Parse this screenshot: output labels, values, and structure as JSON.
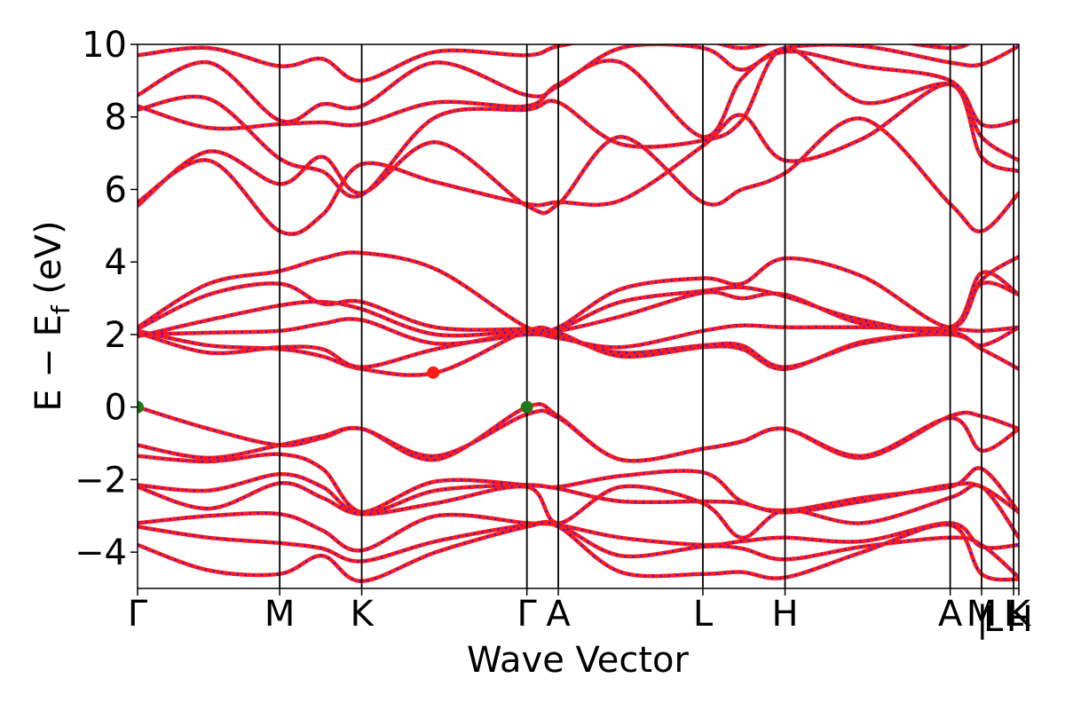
{
  "chart_data": {
    "type": "line",
    "xlabel": "Wave Vector",
    "ylabel_main": "E − E",
    "ylabel_sub": "f",
    "ylabel_unit": " (eV)",
    "ylim": [
      -5,
      10
    ],
    "yticks": [
      10,
      8,
      6,
      4,
      2,
      0,
      -2,
      -4
    ],
    "ytick_labels": [
      "10",
      "8",
      "6",
      "4",
      "2",
      "0",
      "−2",
      "−4"
    ],
    "kpoint_positions": [
      0,
      1.0,
      1.577,
      2.739,
      2.96,
      3.977,
      4.555,
      5.717,
      5.938,
      6.163,
      6.2
    ],
    "kpoint_labels": [
      "Γ",
      "M",
      "K",
      "Γ",
      "A",
      "L",
      "H",
      "A",
      "M",
      "L",
      "K"
    ],
    "extra_label_text": [
      "|",
      "L",
      "H"
    ],
    "extra_label_positions": [
      5.943,
      6.02,
      6.205
    ],
    "line_colors": {
      "primary": "#ff1a1a",
      "overlay": "#1f1fff"
    },
    "markers": [
      {
        "k": 0.0,
        "E": 0.0,
        "color": "#1b7a1b",
        "label": "VBM"
      },
      {
        "k": 2.739,
        "E": 0.0,
        "color": "#1b7a1b",
        "label": "VBM"
      },
      {
        "k": 2.08,
        "E": 0.95,
        "color": "#ff1a1a",
        "label": "CBM"
      }
    ],
    "series": [
      {
        "k": [
          0,
          0.5,
          1.0,
          1.3,
          1.577,
          2.1,
          2.739,
          2.96,
          3.4,
          3.977,
          4.25,
          4.555,
          5.1,
          5.717,
          5.938,
          6.2
        ],
        "E": [
          0.0,
          -0.6,
          -1.05,
          -0.85,
          -0.6,
          -1.45,
          0.0,
          -0.25,
          -1.45,
          -1.15,
          -0.95,
          -0.6,
          -1.4,
          -0.25,
          -0.25,
          -0.6
        ]
      },
      {
        "k": [
          0,
          0.5,
          1.0,
          1.3,
          1.577,
          2.1,
          2.739,
          2.96,
          3.4,
          3.977,
          4.25,
          4.555,
          5.1,
          5.717,
          5.938,
          6.2
        ],
        "E": [
          -1.05,
          -1.4,
          -1.05,
          -0.8,
          -0.6,
          -1.35,
          -0.2,
          -0.3,
          -1.45,
          -1.15,
          -0.95,
          -0.6,
          -1.35,
          -0.3,
          -1.2,
          -0.6
        ]
      },
      {
        "k": [
          0,
          0.5,
          1.0,
          1.3,
          1.577,
          2.1,
          2.739,
          2.96,
          3.4,
          3.977,
          4.25,
          4.555,
          5.1,
          5.717,
          5.938,
          6.2
        ],
        "E": [
          -1.35,
          -1.5,
          -1.3,
          -1.7,
          -2.9,
          -2.3,
          -2.15,
          -2.2,
          -1.9,
          -1.8,
          -2.6,
          -2.85,
          -2.5,
          -2.2,
          -1.7,
          -2.9
        ]
      },
      {
        "k": [
          0,
          0.5,
          1.0,
          1.3,
          1.577,
          2.1,
          2.739,
          2.96,
          3.4,
          3.977,
          4.25,
          4.555,
          5.1,
          5.717,
          5.938,
          6.2
        ],
        "E": [
          -2.15,
          -2.3,
          -1.85,
          -2.2,
          -2.9,
          -2.05,
          -2.15,
          -2.25,
          -2.6,
          -2.6,
          -2.65,
          -2.9,
          -2.6,
          -2.15,
          -2.2,
          -2.9
        ]
      },
      {
        "k": [
          0,
          0.5,
          1.0,
          1.3,
          1.577,
          2.1,
          2.739,
          2.96,
          3.4,
          3.977,
          4.25,
          4.555,
          5.1,
          5.717,
          5.938,
          6.2
        ],
        "E": [
          -2.2,
          -2.8,
          -2.1,
          -2.5,
          -2.95,
          -2.65,
          -2.2,
          -3.2,
          -2.2,
          -2.65,
          -3.6,
          -2.85,
          -3.2,
          -2.5,
          -2.2,
          -3.6
        ]
      },
      {
        "k": [
          0,
          0.5,
          1.0,
          1.3,
          1.577,
          2.1,
          2.739,
          2.96,
          3.4,
          3.977,
          4.25,
          4.555,
          5.1,
          5.717,
          5.938,
          6.2
        ],
        "E": [
          -3.2,
          -3.0,
          -2.95,
          -3.4,
          -3.95,
          -3.0,
          -3.2,
          -3.25,
          -3.6,
          -3.8,
          -3.7,
          -3.6,
          -3.7,
          -3.2,
          -3.85,
          -3.8
        ]
      },
      {
        "k": [
          0,
          0.5,
          1.0,
          1.3,
          1.577,
          2.1,
          2.739,
          2.96,
          3.4,
          3.977,
          4.25,
          4.555,
          5.1,
          5.717,
          5.938,
          6.2
        ],
        "E": [
          -3.3,
          -3.6,
          -3.75,
          -3.9,
          -4.25,
          -3.7,
          -3.25,
          -3.25,
          -4.1,
          -3.85,
          -3.9,
          -4.2,
          -3.85,
          -3.6,
          -3.8,
          -4.7
        ]
      },
      {
        "k": [
          0,
          0.5,
          1.0,
          1.3,
          1.577,
          2.1,
          2.739,
          2.96,
          3.4,
          3.977,
          4.25,
          4.555,
          5.1,
          5.717,
          5.938,
          6.2
        ],
        "E": [
          -3.8,
          -4.5,
          -4.6,
          -4.1,
          -4.8,
          -4.0,
          -3.3,
          -3.3,
          -4.55,
          -4.6,
          -4.55,
          -4.7,
          -4.0,
          -3.25,
          -4.6,
          -4.75
        ]
      },
      {
        "k": [
          0,
          0.5,
          1.0,
          1.3,
          1.577,
          2.1,
          2.739,
          2.96,
          3.4,
          3.977,
          4.25,
          4.555,
          5.1,
          5.717,
          5.938,
          6.2
        ],
        "E": [
          2.1,
          1.7,
          1.6,
          1.4,
          1.05,
          0.95,
          2.1,
          2.05,
          1.4,
          1.65,
          1.6,
          1.05,
          1.8,
          2.0,
          1.6,
          1.05
        ]
      },
      {
        "k": [
          0,
          0.5,
          1.0,
          1.3,
          1.577,
          2.1,
          2.739,
          2.96,
          3.4,
          3.977,
          4.25,
          4.555,
          5.1,
          5.717,
          5.938,
          6.2
        ],
        "E": [
          2.05,
          1.5,
          1.65,
          1.6,
          1.1,
          1.6,
          2.05,
          1.95,
          1.5,
          1.7,
          1.7,
          1.1,
          1.75,
          2.05,
          1.7,
          2.2
        ]
      },
      {
        "k": [
          0,
          0.5,
          1.0,
          1.3,
          1.577,
          2.1,
          2.739,
          2.96,
          3.4,
          3.977,
          4.25,
          4.555,
          5.1,
          5.717,
          5.938,
          6.2
        ],
        "E": [
          2.0,
          2.05,
          2.1,
          2.3,
          2.4,
          1.75,
          2.0,
          1.9,
          1.65,
          2.1,
          2.25,
          2.2,
          2.2,
          2.15,
          2.1,
          2.2
        ]
      },
      {
        "k": [
          0,
          0.5,
          1.0,
          1.3,
          1.577,
          2.1,
          2.739,
          2.96,
          3.4,
          3.977,
          4.25,
          4.555,
          5.1,
          5.717,
          5.938,
          6.2
        ],
        "E": [
          1.95,
          2.4,
          2.8,
          2.9,
          2.7,
          2.0,
          2.1,
          2.1,
          2.5,
          3.15,
          3.0,
          3.1,
          2.3,
          2.2,
          3.4,
          3.1
        ]
      },
      {
        "k": [
          0,
          0.5,
          1.0,
          1.3,
          1.577,
          2.1,
          2.739,
          2.96,
          3.4,
          3.977,
          4.25,
          4.555,
          5.1,
          5.717,
          5.938,
          6.2
        ],
        "E": [
          2.15,
          3.1,
          3.4,
          2.85,
          2.9,
          2.2,
          2.15,
          2.15,
          2.9,
          3.2,
          3.3,
          3.05,
          2.4,
          2.15,
          3.7,
          3.1
        ]
      },
      {
        "k": [
          0,
          0.5,
          1.0,
          1.3,
          1.577,
          2.1,
          2.739,
          2.96,
          3.4,
          3.977,
          4.25,
          4.555,
          5.1,
          5.717,
          5.938,
          6.2
        ],
        "E": [
          2.2,
          3.4,
          3.75,
          4.1,
          4.25,
          3.8,
          2.2,
          2.2,
          3.25,
          3.55,
          3.4,
          4.1,
          3.6,
          2.2,
          3.5,
          4.15
        ]
      },
      {
        "k": [
          0,
          0.5,
          1.0,
          1.3,
          1.577,
          2.1,
          2.739,
          2.96,
          3.4,
          3.977,
          4.25,
          4.555,
          5.1,
          5.717,
          5.938,
          6.2
        ],
        "E": [
          5.55,
          7.05,
          6.15,
          6.9,
          5.9,
          7.3,
          5.55,
          5.6,
          7.45,
          5.65,
          6.0,
          6.45,
          7.95,
          5.6,
          4.85,
          5.9
        ]
      },
      {
        "k": [
          0,
          0.5,
          1.0,
          1.3,
          1.577,
          2.1,
          2.739,
          2.96,
          3.4,
          3.977,
          4.25,
          4.555,
          5.1,
          5.717,
          5.938,
          6.2
        ],
        "E": [
          5.65,
          6.8,
          4.85,
          5.3,
          6.7,
          6.2,
          5.6,
          5.65,
          5.7,
          7.2,
          8.05,
          6.8,
          7.4,
          8.9,
          6.9,
          6.5
        ]
      },
      {
        "k": [
          0,
          0.5,
          1.0,
          1.3,
          1.577,
          2.1,
          2.739,
          2.96,
          3.4,
          3.977,
          4.25,
          4.555,
          5.1,
          5.717,
          5.938,
          6.2
        ],
        "E": [
          8.2,
          8.5,
          6.85,
          6.5,
          5.85,
          8.0,
          8.2,
          8.4,
          7.25,
          7.35,
          7.9,
          9.9,
          8.4,
          8.9,
          7.45,
          6.8
        ]
      },
      {
        "k": [
          0,
          0.5,
          1.0,
          1.3,
          1.577,
          2.1,
          2.739,
          2.96,
          3.4,
          3.977,
          4.25,
          4.555,
          5.1,
          5.717,
          5.938,
          6.2
        ],
        "E": [
          8.3,
          7.7,
          7.8,
          7.85,
          7.8,
          8.4,
          8.3,
          8.9,
          9.5,
          7.45,
          9.05,
          9.8,
          9.4,
          9.0,
          7.8,
          7.9
        ]
      },
      {
        "k": [
          0,
          0.5,
          1.0,
          1.3,
          1.577,
          2.1,
          2.739,
          2.96,
          3.4,
          3.977,
          4.25,
          4.555,
          5.1,
          5.717,
          5.938,
          6.2
        ],
        "E": [
          8.6,
          9.5,
          7.9,
          8.35,
          8.3,
          9.5,
          8.6,
          8.85,
          9.9,
          9.9,
          9.3,
          9.9,
          9.95,
          9.5,
          9.45,
          9.95
        ]
      },
      {
        "k": [
          0,
          0.5,
          1.0,
          1.3,
          1.577,
          2.1,
          2.739,
          2.96,
          3.4,
          3.977,
          4.25,
          4.555,
          5.1,
          5.717,
          5.938,
          6.2
        ],
        "E": [
          9.7,
          9.9,
          9.4,
          9.6,
          9.0,
          9.8,
          9.7,
          9.95,
          10.2,
          10.1,
          9.9,
          10.1,
          10.2,
          9.9,
          10.2,
          10.2
        ]
      }
    ]
  }
}
